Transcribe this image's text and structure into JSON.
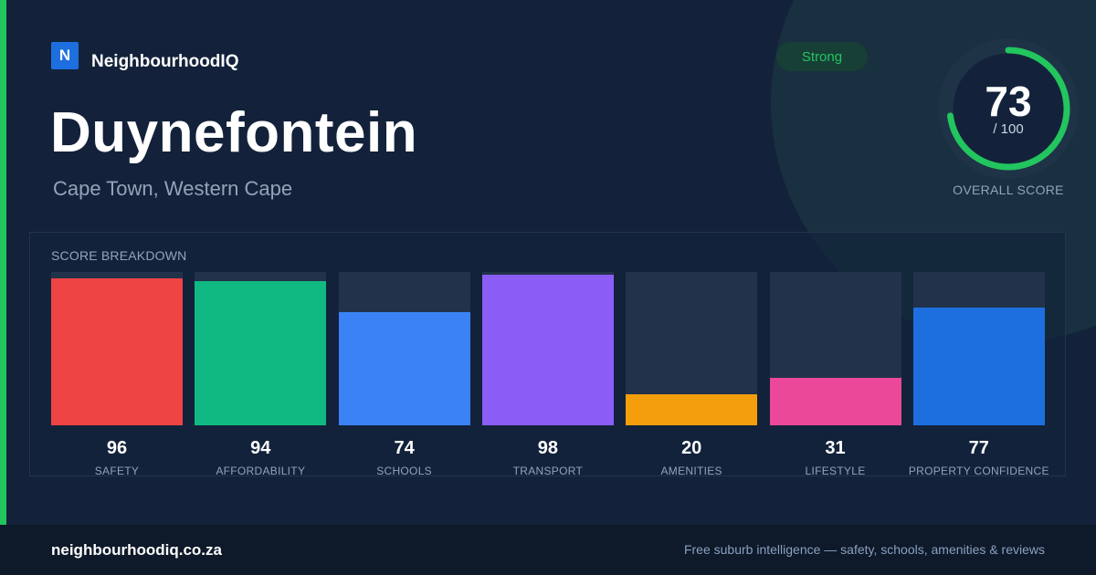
{
  "brand": {
    "logo_letter": "N",
    "name": "NeighbourhoodIQ"
  },
  "suburb": {
    "name": "Duynefontein",
    "location": "Cape Town, Western Cape"
  },
  "badge": {
    "label": "Strong",
    "color": "#22c55e"
  },
  "overall": {
    "score": "73",
    "denominator": "/ 100",
    "label": "OVERALL SCORE",
    "value": 73,
    "max": 100,
    "ring_color": "#22c55e"
  },
  "breakdown": {
    "title": "SCORE BREAKDOWN",
    "max": 100,
    "items": [
      {
        "label": "SAFETY",
        "value": 96,
        "color": "#ef4444"
      },
      {
        "label": "AFFORDABILITY",
        "value": 94,
        "color": "#10b981"
      },
      {
        "label": "SCHOOLS",
        "value": 74,
        "color": "#3b82f6"
      },
      {
        "label": "TRANSPORT",
        "value": 98,
        "color": "#8b5cf6"
      },
      {
        "label": "AMENITIES",
        "value": 20,
        "color": "#f59e0b"
      },
      {
        "label": "LIFESTYLE",
        "value": 31,
        "color": "#ec4899"
      },
      {
        "label": "PROPERTY CONFIDENCE",
        "value": 77,
        "color": "#1d6fe0"
      }
    ]
  },
  "footer": {
    "url": "neighbourhoodiq.co.za",
    "tagline": "Free suburb intelligence — safety, schools, amenities & reviews"
  }
}
